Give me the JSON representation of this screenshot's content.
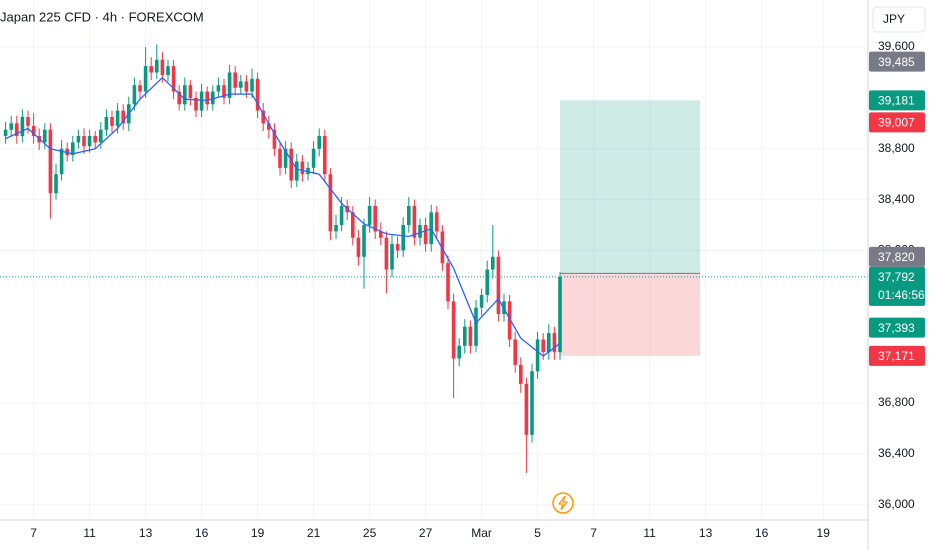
{
  "chart_data": {
    "type": "candlestick",
    "title": "Japan 225 CFD · 4h · FOREXCOM",
    "currency": "JPY",
    "up_color": "#089981",
    "down_color": "#f23645",
    "ma_color": "#2962ff",
    "open": [
      38900,
      38950,
      39000,
      38900,
      39050,
      38980,
      38900,
      38850,
      38950,
      38450,
      38600,
      38800,
      38750,
      38850,
      38900,
      38820,
      38900,
      38850,
      38950,
      39050,
      38980,
      39100,
      39000,
      39150,
      39300,
      39250,
      39450,
      39400,
      39500,
      39380,
      39450,
      39250,
      39150,
      39300,
      39200,
      39100,
      39250,
      39150,
      39250,
      39300,
      39200,
      39400,
      39280,
      39330,
      39250,
      39350,
      39100,
      39000,
      38950,
      38800,
      38650,
      38800,
      38550,
      38700,
      38600,
      38650,
      38800,
      38900,
      38600,
      38150,
      38200,
      38350,
      38300,
      38100,
      37950,
      38200,
      38350,
      38150,
      38100,
      37850,
      38050,
      38000,
      38200,
      38350,
      38100,
      38200,
      38050,
      38300,
      38150,
      37900,
      37600,
      37150,
      37250,
      37400,
      37250,
      37550,
      37650,
      37850,
      37950,
      37500,
      37600,
      37300,
      37100,
      36950,
      36550,
      37050,
      37300,
      37200,
      37350,
      37200
    ],
    "high": [
      39010,
      39060,
      39060,
      39110,
      39100,
      39080,
      38960,
      39000,
      39000,
      38680,
      38870,
      38850,
      38900,
      38950,
      38960,
      38950,
      38940,
      39010,
      39110,
      39100,
      39160,
      39150,
      39210,
      39360,
      39340,
      39600,
      39520,
      39620,
      39560,
      39500,
      39500,
      39300,
      39360,
      39340,
      39250,
      39310,
      39290,
      39300,
      39360,
      39350,
      39460,
      39450,
      39380,
      39380,
      39430,
      39400,
      39160,
      39060,
      39000,
      38850,
      38860,
      38850,
      38760,
      38750,
      38700,
      38860,
      38960,
      38950,
      38650,
      38280,
      38420,
      38400,
      38350,
      38160,
      38250,
      38420,
      38400,
      38220,
      38150,
      38120,
      38110,
      38260,
      38420,
      38400,
      38250,
      38260,
      38360,
      38350,
      38200,
      37960,
      37660,
      37310,
      37460,
      37450,
      37610,
      37700,
      37920,
      38200,
      38000,
      37660,
      37650,
      37360,
      37160,
      37000,
      37110,
      37360,
      37350,
      37420,
      37400,
      37830
    ],
    "low": [
      38840,
      38900,
      38840,
      38850,
      38920,
      38840,
      38790,
      38800,
      38250,
      38400,
      38550,
      38700,
      38700,
      38800,
      38760,
      38770,
      38800,
      38800,
      38900,
      38920,
      38920,
      38950,
      38940,
      39100,
      39190,
      39200,
      39340,
      39350,
      39320,
      39330,
      39190,
      39100,
      39100,
      39140,
      39050,
      39050,
      39100,
      39100,
      39200,
      39150,
      39150,
      39220,
      39230,
      39200,
      39200,
      39040,
      38940,
      38880,
      38740,
      38590,
      38600,
      38490,
      38500,
      38540,
      38550,
      38600,
      38740,
      38540,
      38080,
      38090,
      38150,
      38240,
      38040,
      37880,
      37700,
      38140,
      38090,
      38040,
      37660,
      37790,
      37940,
      37950,
      38140,
      38040,
      38040,
      37990,
      37990,
      38090,
      37840,
      37540,
      36840,
      37090,
      37190,
      37190,
      37200,
      37490,
      37590,
      37780,
      37440,
      37440,
      37240,
      37040,
      36880,
      36250,
      36490,
      36990,
      37140,
      37140,
      37140,
      37140
    ],
    "close": [
      38950,
      39000,
      38900,
      39050,
      38980,
      38900,
      38850,
      38950,
      38450,
      38600,
      38800,
      38750,
      38850,
      38900,
      38820,
      38900,
      38850,
      38950,
      39050,
      38980,
      39100,
      39000,
      39150,
      39300,
      39250,
      39450,
      39400,
      39500,
      39380,
      39450,
      39250,
      39150,
      39300,
      39200,
      39100,
      39250,
      39150,
      39250,
      39300,
      39200,
      39400,
      39280,
      39330,
      39250,
      39350,
      39100,
      39000,
      38950,
      38800,
      38650,
      38800,
      38550,
      38700,
      38600,
      38650,
      38800,
      38900,
      38600,
      38150,
      38200,
      38350,
      38300,
      38100,
      37950,
      38200,
      38350,
      38150,
      38100,
      37850,
      38050,
      38000,
      38200,
      38350,
      38100,
      38200,
      38050,
      38300,
      38150,
      37900,
      37600,
      37150,
      37250,
      37400,
      37250,
      37550,
      37650,
      37850,
      37950,
      37500,
      37600,
      37300,
      37100,
      36950,
      36550,
      37050,
      37300,
      37200,
      37350,
      37200,
      37792
    ],
    "ma": {
      "x": [
        0,
        4,
        8,
        12,
        16,
        20,
        24,
        28,
        32,
        36,
        40,
        44,
        48,
        52,
        56,
        60,
        64,
        68,
        72,
        76,
        80,
        84,
        88,
        92,
        96,
        99
      ],
      "values": [
        38880,
        38960,
        38800,
        38760,
        38800,
        38960,
        39190,
        39360,
        39190,
        39180,
        39230,
        39230,
        38920,
        38640,
        38600,
        38370,
        38210,
        38130,
        38110,
        38170,
        37860,
        37430,
        37620,
        37310,
        37170,
        37270
      ]
    },
    "xlim": [
      -1,
      154
    ],
    "ylim": [
      35880,
      39970
    ],
    "xticks": [
      {
        "value": 5,
        "label": "7"
      },
      {
        "value": 15,
        "label": "11"
      },
      {
        "value": 25,
        "label": "13"
      },
      {
        "value": 35,
        "label": "16"
      },
      {
        "value": 45,
        "label": "19"
      },
      {
        "value": 55,
        "label": "21"
      },
      {
        "value": 65,
        "label": "25"
      },
      {
        "value": 75,
        "label": "27"
      },
      {
        "value": 85,
        "label": "Mar"
      },
      {
        "value": 95,
        "label": "5"
      },
      {
        "value": 105,
        "label": "7"
      },
      {
        "value": 115,
        "label": "11"
      },
      {
        "value": 125,
        "label": "13"
      },
      {
        "value": 135,
        "label": "16"
      },
      {
        "value": 146,
        "label": "19"
      }
    ],
    "yticks": [
      {
        "value": 39600,
        "label": "39,600"
      },
      {
        "value": 38800,
        "label": "38,800"
      },
      {
        "value": 38400,
        "label": "38,400"
      },
      {
        "value": 38000,
        "label": "38,000"
      },
      {
        "value": 36800,
        "label": "36,800"
      },
      {
        "value": 36400,
        "label": "36,400"
      },
      {
        "value": 36000,
        "label": "36,000"
      }
    ],
    "grid": true,
    "position": {
      "entry": 37820,
      "target": 39181,
      "stop": 37171,
      "x": [
        99,
        124
      ]
    },
    "price_tags": [
      {
        "value": 39485,
        "label": "39,485",
        "color": "#787b86"
      },
      {
        "value": 39181,
        "label": "39,181",
        "color": "#089981"
      },
      {
        "value": 39007,
        "label": "39,007",
        "color": "#f23645"
      },
      {
        "value": 37820,
        "label": "37,820",
        "color": "#787b86"
      },
      {
        "value": 37792,
        "label": "37,792",
        "color": "#089981",
        "countdown": "01:46:56"
      },
      {
        "value": 37393,
        "label": "37,393",
        "color": "#089981"
      },
      {
        "value": 37171,
        "label": "37,171",
        "color": "#f23645"
      }
    ]
  }
}
